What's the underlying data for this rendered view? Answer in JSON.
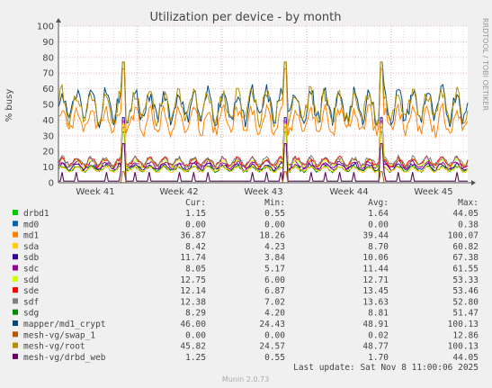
{
  "chart_data": {
    "type": "line",
    "title": "Utilization per device - by month",
    "ylabel": "% busy",
    "side_label": "RRDTOOL / TOBI OETIKER",
    "ylim": [
      0,
      100
    ],
    "yticks": [
      0,
      10,
      20,
      30,
      40,
      50,
      60,
      70,
      80,
      90,
      100
    ],
    "xticks": [
      "Week 41",
      "Week 42",
      "Week 43",
      "Week 44",
      "Week 45"
    ],
    "grid": true,
    "columns": [
      "Cur:",
      "Min:",
      "Avg:",
      "Max:"
    ],
    "series": [
      {
        "name": "drbd1",
        "color": "#00cc00",
        "cur": "1.15",
        "min": "0.55",
        "avg": "1.64",
        "max": "44.05"
      },
      {
        "name": "md0",
        "color": "#0066b3",
        "cur": "0.00",
        "min": "0.00",
        "avg": "0.00",
        "max": "0.38"
      },
      {
        "name": "md1",
        "color": "#ff8000",
        "cur": "36.87",
        "min": "18.26",
        "avg": "39.44",
        "max": "100.07"
      },
      {
        "name": "sda",
        "color": "#ffcc00",
        "cur": "8.42",
        "min": "4.23",
        "avg": "8.70",
        "max": "60.82"
      },
      {
        "name": "sdb",
        "color": "#330099",
        "cur": "11.74",
        "min": "3.84",
        "avg": "10.06",
        "max": "67.38"
      },
      {
        "name": "sdc",
        "color": "#990099",
        "cur": "8.05",
        "min": "5.17",
        "avg": "11.44",
        "max": "61.55"
      },
      {
        "name": "sdd",
        "color": "#ccff00",
        "cur": "12.75",
        "min": "6.00",
        "avg": "12.71",
        "max": "53.33"
      },
      {
        "name": "sde",
        "color": "#ff0000",
        "cur": "12.14",
        "min": "6.87",
        "avg": "13.45",
        "max": "53.46"
      },
      {
        "name": "sdf",
        "color": "#808080",
        "cur": "12.38",
        "min": "7.02",
        "avg": "13.63",
        "max": "52.80"
      },
      {
        "name": "sdg",
        "color": "#008f00",
        "cur": "8.29",
        "min": "4.20",
        "avg": "8.81",
        "max": "51.47"
      },
      {
        "name": "mapper/md1_crypt",
        "color": "#00487d",
        "cur": "46.00",
        "min": "24.43",
        "avg": "48.91",
        "max": "100.13"
      },
      {
        "name": "mesh-vg/swap_1",
        "color": "#b35a00",
        "cur": "0.00",
        "min": "0.00",
        "avg": "0.02",
        "max": "12.86"
      },
      {
        "name": "mesh-vg/root",
        "color": "#b38f00",
        "cur": "45.82",
        "min": "24.57",
        "avg": "48.77",
        "max": "100.13"
      },
      {
        "name": "mesh-vg/drbd_web",
        "color": "#6b006b",
        "cur": "1.25",
        "min": "0.55",
        "avg": "1.70",
        "max": "44.05"
      }
    ],
    "last_update": "Last update: Sat Nov  8 11:00:06 2025",
    "footer": "Munin 2.0.73"
  }
}
